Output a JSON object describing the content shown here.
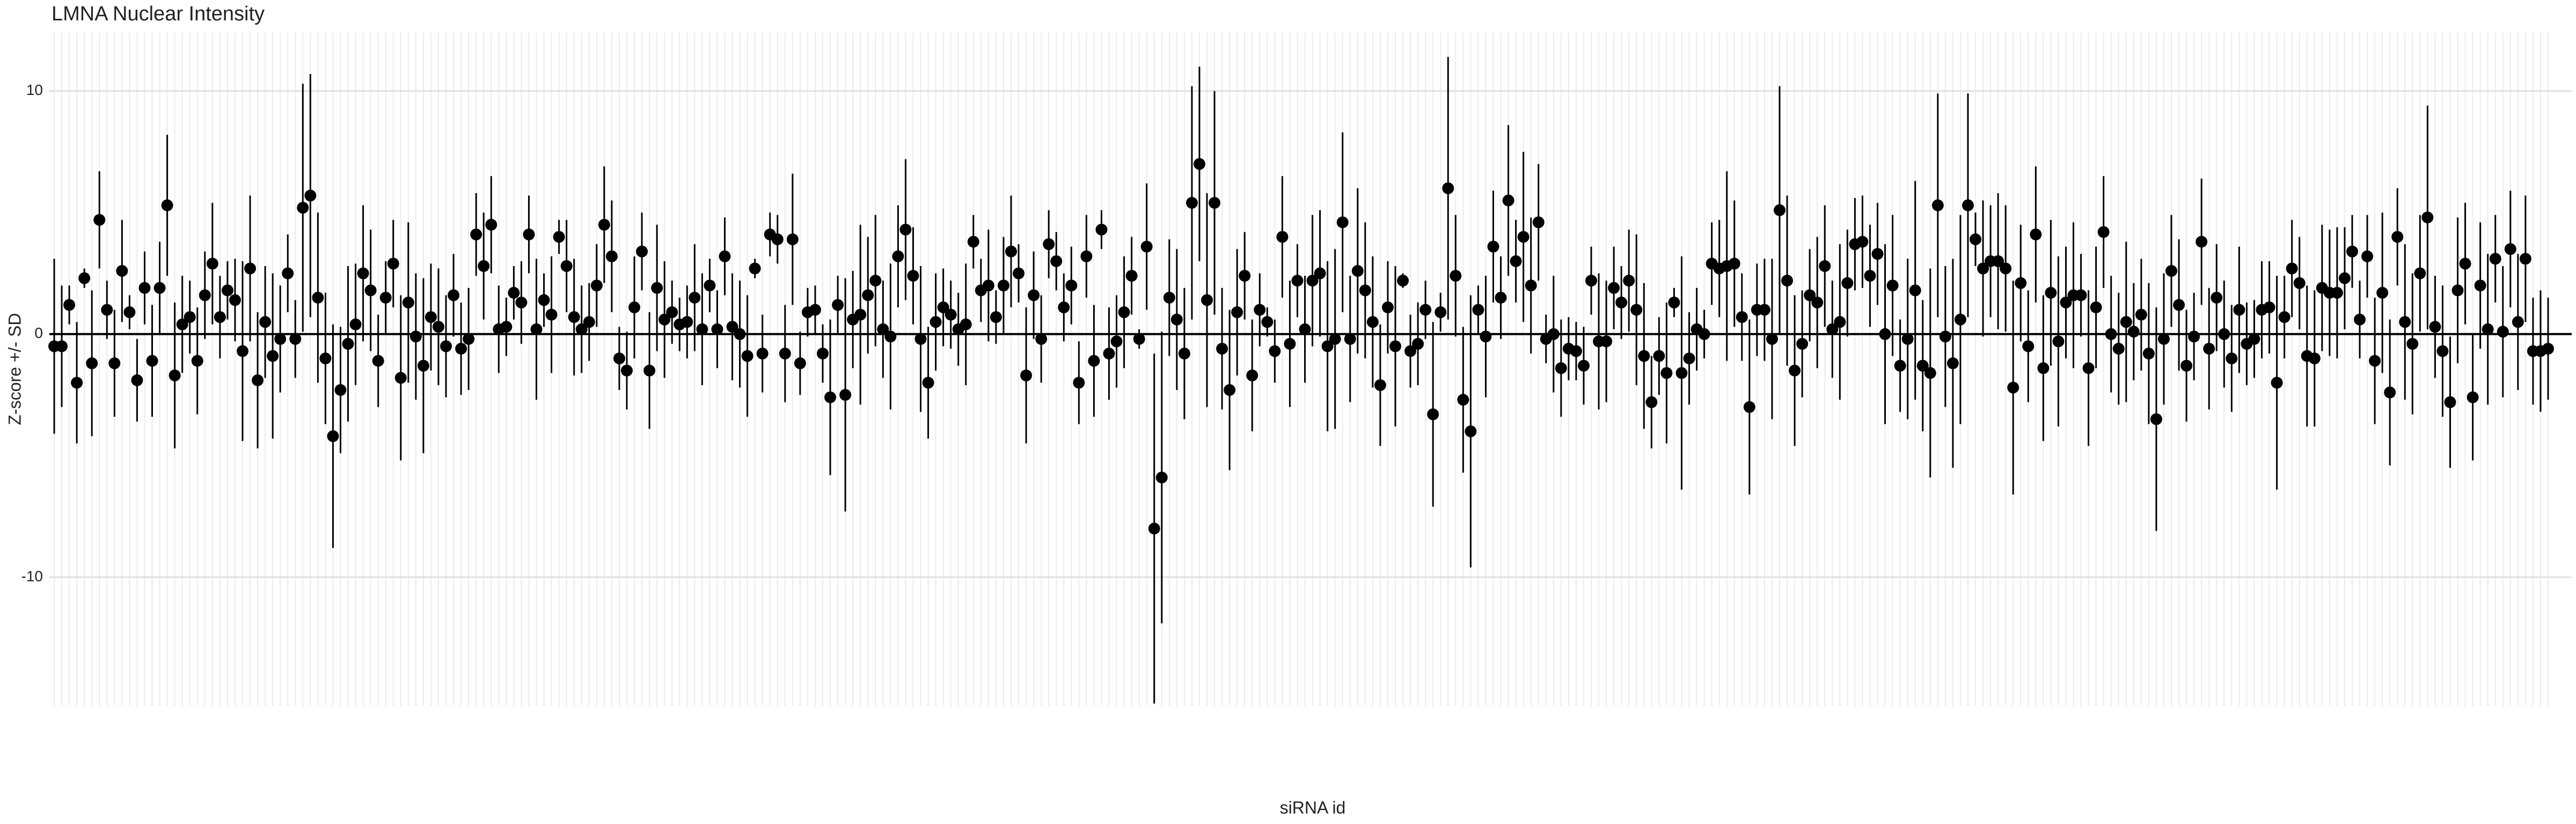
{
  "chart_data": {
    "type": "errorbar-dot",
    "title": "LMNA Nuclear Intensity",
    "x_label": "siRNA id",
    "y_label": "Z-score +/- SD",
    "color": "#000000",
    "grid": true,
    "ylim": [
      -15.3,
      12.4
    ],
    "yticks": [
      -10,
      0,
      10
    ],
    "values": [
      -0.5,
      -0.5,
      1.2,
      -2.0,
      2.3,
      -1.2,
      4.7,
      1.0,
      -1.2,
      2.6,
      0.9,
      -1.9,
      1.9,
      -1.1,
      1.9,
      5.3,
      -1.7,
      0.4,
      0.7,
      -1.1,
      1.6,
      2.9,
      0.7,
      1.8,
      1.4,
      -0.7,
      2.7,
      -1.9,
      0.5,
      -0.9,
      -0.2,
      2.5,
      -0.2,
      5.2,
      5.7,
      1.5,
      -1.0,
      -4.2,
      -2.3,
      -0.4,
      0.4,
      2.5,
      1.8,
      -1.1,
      1.5,
      2.9,
      -1.8,
      1.3,
      -0.1,
      -1.3,
      0.7,
      0.3,
      -0.5,
      1.6,
      -0.6,
      -0.2,
      4.1,
      2.8,
      4.5,
      0.2,
      0.3,
      1.7,
      1.3,
      4.1,
      0.2,
      1.4,
      0.8,
      4.0,
      2.8,
      0.7,
      0.2,
      0.5,
      2.0,
      4.5,
      3.2,
      -1.0,
      -1.5,
      1.1,
      3.4,
      -1.5,
      1.9,
      0.6,
      0.9,
      0.4,
      0.5,
      1.5,
      0.2,
      2.0,
      0.2,
      3.2,
      0.3,
      0.0,
      -0.9,
      2.7,
      -0.8,
      4.1,
      3.9,
      -0.8,
      3.9,
      -1.2,
      0.9,
      1.0,
      -0.8,
      -2.6,
      1.2,
      -2.5,
      0.6,
      0.8,
      1.6,
      2.2,
      0.2,
      -0.1,
      3.2,
      4.3,
      2.4,
      -0.2,
      -2.0,
      0.5,
      1.1,
      0.8,
      0.2,
      0.4,
      3.8,
      1.8,
      2.0,
      0.7,
      2.0,
      3.4,
      2.5,
      -1.7,
      1.6,
      -0.2,
      3.7,
      3.0,
      1.1,
      2.0,
      -2.0,
      3.2,
      -1.1,
      4.3,
      -0.8,
      -0.3,
      0.9,
      2.4,
      -0.2,
      3.6,
      -8.0,
      -5.9,
      1.5,
      0.6,
      -0.8,
      5.4,
      7.0,
      1.4,
      5.4,
      -0.6,
      -2.3,
      0.9,
      2.4,
      -1.7,
      1.0,
      0.5,
      -0.7,
      4.0,
      -0.4,
      2.2,
      0.2,
      2.2,
      2.5,
      -0.5,
      -0.2,
      4.6,
      -0.2,
      2.6,
      1.8,
      0.5,
      -2.1,
      1.1,
      -0.5,
      2.2,
      -0.7,
      -0.4,
      1.0,
      -3.3,
      0.9,
      6.0,
      2.4,
      -2.7,
      -4.0,
      1.0,
      -0.1,
      3.6,
      1.5,
      5.5,
      3.0,
      4.0,
      2.0,
      4.6,
      -0.2,
      0.0,
      -1.4,
      -0.6,
      -0.7,
      -1.3,
      2.2,
      -0.3,
      -0.3,
      1.9,
      1.3,
      2.2,
      1.0,
      -0.9,
      -2.8,
      -0.9,
      -1.6,
      1.3,
      -1.6,
      -1.0,
      0.2,
      0.0,
      2.9,
      2.7,
      2.8,
      2.9,
      0.7,
      -3.0,
      1.0,
      1.0,
      -0.2,
      5.1,
      2.2,
      -1.5,
      -0.4,
      1.6,
      1.3,
      2.8,
      0.2,
      0.5,
      2.1,
      3.7,
      3.8,
      2.4,
      3.3,
      0.0,
      2.0,
      -1.3,
      -0.2,
      1.8,
      -1.3,
      -1.6,
      5.3,
      -0.1,
      -1.2,
      0.6,
      5.3,
      3.9,
      2.7,
      3.0,
      3.0,
      2.7,
      -2.2,
      2.1,
      -0.5,
      4.1,
      -1.4,
      1.7,
      -0.3,
      1.3,
      1.6,
      1.6,
      -1.4,
      1.1,
      4.2,
      0.0,
      -0.6,
      0.5,
      0.1,
      0.8,
      -0.8,
      -3.5,
      -0.2,
      2.6,
      1.2,
      -1.3,
      -0.1,
      3.8,
      -0.6,
      1.5,
      0.0,
      -1.0,
      1.0,
      -0.4,
      -0.2,
      1.0,
      1.1,
      -2.0,
      0.7,
      2.7,
      2.1,
      -0.9,
      -1.0,
      1.9,
      1.7,
      1.7,
      2.3,
      3.4,
      0.6,
      3.2,
      -1.1,
      1.7,
      -2.4,
      4.0,
      0.5,
      -0.4,
      2.5,
      4.8,
      0.3,
      -0.7,
      -2.8,
      1.8,
      2.9,
      -2.6,
      2.0,
      0.2,
      3.1,
      0.1,
      3.5,
      0.5,
      3.1,
      -0.7,
      -0.7,
      -0.6
    ],
    "errors": [
      3.6,
      2.5,
      0.8,
      2.5,
      0.4,
      3,
      2,
      1.2,
      2.2,
      2.1,
      0.7,
      1.7,
      1.5,
      2.3,
      1.9,
      2.9,
      3,
      2,
      1.5,
      2.2,
      1.8,
      2.5,
      1.7,
      1.2,
      1.7,
      3.7,
      3,
      2.8,
      2.3,
      3.4,
      2.2,
      1.6,
      1.6,
      5.1,
      5,
      3.5,
      2.7,
      4.6,
      2.6,
      3.2,
      2.5,
      2.8,
      2.5,
      1.9,
      1.5,
      1.8,
      3.4,
      3.3,
      2.6,
      3.6,
      2.2,
      2.4,
      2.1,
      1.7,
      1.9,
      2.1,
      1.7,
      2.2,
      2.0,
      1.8,
      1.2,
      1.1,
      1.7,
      1.6,
      2.9,
      1.1,
      2.4,
      0.7,
      1.9,
      2.4,
      1.8,
      1.6,
      1.7,
      2.4,
      2.3,
      1.3,
      1.6,
      2.1,
      1.6,
      2.4,
      2.6,
      2.4,
      1.3,
      1.1,
      1.5,
      2.2,
      2.3,
      1.1,
      1.6,
      1.6,
      2.2,
      2.2,
      2.5,
      0.4,
      1.6,
      0.9,
      1.0,
      2.0,
      2.7,
      1.3,
      1.0,
      1.0,
      1.2,
      3.2,
      1.2,
      4.8,
      2.0,
      3.7,
      2.4,
      2.7,
      2.0,
      3.0,
      2.1,
      2.9,
      2.0,
      3.0,
      2.3,
      2.0,
      1.6,
      1.4,
      1.5,
      2.5,
      1.1,
      1.3,
      2.3,
      1.1,
      2.0,
      2.3,
      1.2,
      2.8,
      1.8,
      1.8,
      1.4,
      1.2,
      1.4,
      1.6,
      1.7,
      1.7,
      2.3,
      0.8,
      1.9,
      1.9,
      2.3,
      1.6,
      0.4,
      2.6,
      7.2,
      6.0,
      2.4,
      2.9,
      2.7,
      4.8,
      4.0,
      4.4,
      4.6,
      2.5,
      3.3,
      2.6,
      1.8,
      2.3,
      1.5,
      0.6,
      1.3,
      2.5,
      2.6,
      1.5,
      2.2,
      2.7,
      2.6,
      3.5,
      3.7,
      3.7,
      2.6,
      3.4,
      2.8,
      2.7,
      2.5,
      1.9,
      3.3,
      0.3,
      1.5,
      1.7,
      1.2,
      3.8,
      0.8,
      5.4,
      2.5,
      3.0,
      5.6,
      1.0,
      2.5,
      2.3,
      1.7,
      3.1,
      1.7,
      3.5,
      2.8,
      2.4,
      1.0,
      2.4,
      2.0,
      1.3,
      1.2,
      1.6,
      1.4,
      2.8,
      2.5,
      1.7,
      1.5,
      2.1,
      3.1,
      3.0,
      1.9,
      1.6,
      2.9,
      0.6,
      4.8,
      1.9,
      1.7,
      1.0,
      1.7,
      2.0,
      3.9,
      2.6,
      1.8,
      3.6,
      1.9,
      2.1,
      3.3,
      5.1,
      3.5,
      3.1,
      2.2,
      1.9,
      2.7,
      2.5,
      2.0,
      3.2,
      2.2,
      1.9,
      1.9,
      2.1,
      2.1,
      3.7,
      2.9,
      1.9,
      3.3,
      4.5,
      2.7,
      4.3,
      4.6,
      2.9,
      4.3,
      4.3,
      4.6,
      1.1,
      2.8,
      2.3,
      2.8,
      2.6,
      4.4,
      2.4,
      2.3,
      2.8,
      3.0,
      3.0,
      3.5,
      2.3,
      3.0,
      1.7,
      3.2,
      2.5,
      2.3,
      2.4,
      2.3,
      3.3,
      2.0,
      2.3,
      2.9,
      4.6,
      2.7,
      2.3,
      2.7,
      2.3,
      1.8,
      2.6,
      2.5,
      2.2,
      2.2,
      2.2,
      2.6,
      1.7,
      1.6,
      2.0,
      1.9,
      4.4,
      1.7,
      2.0,
      1.9,
      2.9,
      2.8,
      2.6,
      2.6,
      2.7,
      2.1,
      1.5,
      1.6,
      1.7,
      2.6,
      3.3,
      3.0,
      2.0,
      3.2,
      2.9,
      2.4,
      4.6,
      2.1,
      2.7,
      2.7,
      3.0,
      2.5,
      2.6,
      2.6,
      3.1,
      1.8,
      2.7,
      2.4,
      2.8,
      2.6,
      2.2,
      2.5,
      2.1
    ]
  }
}
